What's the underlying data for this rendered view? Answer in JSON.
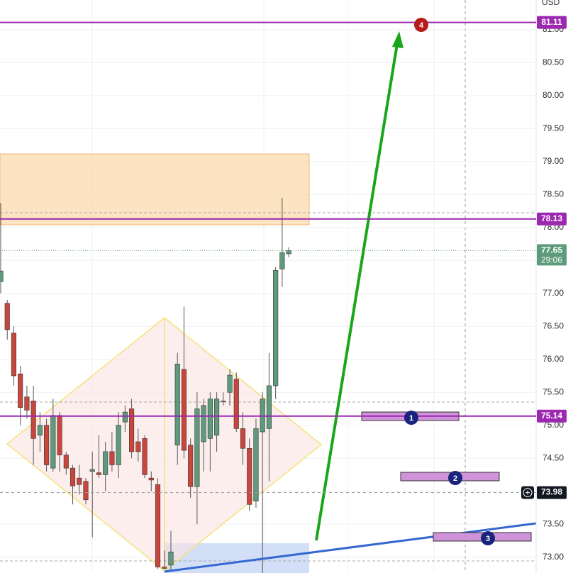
{
  "chart_data": {
    "type": "candlestick",
    "currency": "USD",
    "categories": [
      null,
      null,
      null,
      null,
      null,
      null,
      null,
      null,
      null,
      null,
      null,
      null,
      null,
      null,
      null,
      null,
      null,
      null,
      null,
      null,
      null,
      null,
      null,
      null,
      null,
      null,
      null,
      null,
      null,
      null,
      null,
      null,
      null,
      null,
      null,
      null,
      null,
      null,
      null,
      null,
      null,
      null,
      null,
      null,
      null
    ],
    "open": [
      77.18,
      76.85,
      76.4,
      75.78,
      75.43,
      75.37,
      74.85,
      75.0,
      74.35,
      75.15,
      74.55,
      74.35,
      74.2,
      74.15,
      74.3,
      74.28,
      74.25,
      74.6,
      74.4,
      75.05,
      75.25,
      74.75,
      74.8,
      74.2,
      74.1,
      72.85,
      72.88,
      74.7,
      75.85,
      74.7,
      74.07,
      74.75,
      74.8,
      74.85,
      75.37,
      75.5,
      75.7,
      74.95,
      74.65,
      73.85,
      74.9,
      74.95,
      75.6,
      77.37,
      77.6
    ],
    "high": [
      78.37,
      76.9,
      76.5,
      75.9,
      75.6,
      75.6,
      75.2,
      75.1,
      75.4,
      75.2,
      74.6,
      74.4,
      74.4,
      74.2,
      74.6,
      74.85,
      74.75,
      74.9,
      75.2,
      75.3,
      75.4,
      74.95,
      74.85,
      74.3,
      74.2,
      73.1,
      73.4,
      76.1,
      76.8,
      74.8,
      75.5,
      75.4,
      75.5,
      75.5,
      75.5,
      75.85,
      75.8,
      75.2,
      74.8,
      75.1,
      75.5,
      76.1,
      77.4,
      78.45,
      77.7
    ],
    "low": [
      77.0,
      76.3,
      75.6,
      75.0,
      75.1,
      74.4,
      74.6,
      74.3,
      74.3,
      74.3,
      74.25,
      73.8,
      73.95,
      73.8,
      73.3,
      74.2,
      74.0,
      74.3,
      74.2,
      74.9,
      74.5,
      74.45,
      74.2,
      74.0,
      72.82,
      72.82,
      72.8,
      74.4,
      74.5,
      73.9,
      73.5,
      74.3,
      74.3,
      74.6,
      75.3,
      75.3,
      74.9,
      74.4,
      73.7,
      73.75,
      72.7,
      74.15,
      75.4,
      77.1,
      77.55
    ],
    "close": [
      77.34,
      76.45,
      75.75,
      75.27,
      75.23,
      74.8,
      75.0,
      74.4,
      75.15,
      74.55,
      74.35,
      74.08,
      74.1,
      73.87,
      74.33,
      74.25,
      74.6,
      74.4,
      75.0,
      75.2,
      74.6,
      74.6,
      74.25,
      74.17,
      72.85,
      72.83,
      73.08,
      75.93,
      74.62,
      74.07,
      75.25,
      75.3,
      75.4,
      75.4,
      75.37,
      75.76,
      74.95,
      74.65,
      73.8,
      74.95,
      75.4,
      75.6,
      77.35,
      77.62,
      77.65
    ],
    "up_color": "#5e9b7b",
    "down_color": "#c9463d",
    "ylim": [
      72.76,
      81.45
    ],
    "yticks": [
      {
        "value": 73,
        "label": "73.00"
      },
      {
        "value": 73.5,
        "label": "73.50"
      },
      {
        "value": 74,
        "label": "74.00"
      },
      {
        "value": 74.5,
        "label": "74.50"
      },
      {
        "value": 75,
        "label": "75.00"
      },
      {
        "value": 75.5,
        "label": "75.50"
      },
      {
        "value": 76,
        "label": "76.00"
      },
      {
        "value": 76.5,
        "label": "76.50"
      },
      {
        "value": 77,
        "label": "77.00"
      },
      {
        "value": 77.5,
        "label": "77.50"
      },
      {
        "value": 78,
        "label": "78.00"
      },
      {
        "value": 78.5,
        "label": "78.50"
      },
      {
        "value": 79,
        "label": "79.00"
      },
      {
        "value": 79.5,
        "label": "79.50"
      },
      {
        "value": 80,
        "label": "80.00"
      },
      {
        "value": 80.5,
        "label": "80.50"
      },
      {
        "value": 81,
        "label": "81.00"
      }
    ],
    "grid": true,
    "price_lines": [
      81.11,
      78.13,
      75.14
    ],
    "line_color": "#9c27b0",
    "last_price": 77.65,
    "countdown": "29:06",
    "crosshair_price": 73.98,
    "markers": [
      "1",
      "2",
      "3",
      "4"
    ]
  }
}
